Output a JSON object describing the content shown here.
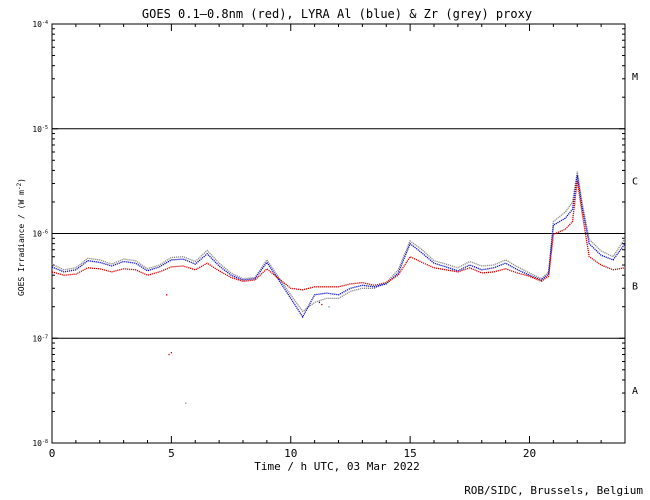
{
  "chart_data": {
    "type": "scatter",
    "title": "GOES 0.1—0.8nm (red), LYRA Al (blue) & Zr (grey) proxy",
    "xlabel": "Time / h UTC, 03 Mar 2022",
    "ylabel_prefix": "GOES Irradiance / (W m",
    "ylabel_exp": "-2",
    "ylabel_suffix": ")",
    "credit": "ROB/SIDC, Brussels, Belgium",
    "xlim": [
      0,
      24
    ],
    "ylim": [
      1e-08,
      0.0001
    ],
    "yscale": "log",
    "x_ticks": [
      0,
      5,
      10,
      15,
      20
    ],
    "y_ticks": [
      {
        "value": 1e-08,
        "base": "10",
        "exp": "-8"
      },
      {
        "value": 1e-07,
        "base": "10",
        "exp": "-7"
      },
      {
        "value": 1e-06,
        "base": "10",
        "exp": "-6"
      },
      {
        "value": 1e-05,
        "base": "10",
        "exp": "-5"
      },
      {
        "value": 0.0001,
        "base": "10",
        "exp": "-4"
      }
    ],
    "class_lines": [
      1e-07,
      1e-06,
      1e-05
    ],
    "class_labels": [
      {
        "label": "A",
        "value": 3.2e-08
      },
      {
        "label": "B",
        "value": 3.2e-07
      },
      {
        "label": "C",
        "value": 3.2e-06
      },
      {
        "label": "M",
        "value": 3.2e-05
      }
    ],
    "series": [
      {
        "color": "#d40000",
        "x": [
          0,
          0.5,
          1.0,
          1.5,
          2.0,
          2.5,
          3.0,
          3.5,
          4.0,
          4.5,
          5.0,
          5.5,
          6.0,
          6.5,
          7.0,
          7.5,
          8.0,
          8.5,
          9.0,
          9.5,
          10.0,
          10.5,
          11.0,
          11.5,
          12.0,
          12.5,
          13.0,
          13.5,
          14.0,
          14.5,
          15.0,
          15.5,
          16.0,
          16.5,
          17.0,
          17.5,
          18.0,
          18.5,
          19.0,
          19.5,
          20.0,
          20.5,
          20.8,
          21.0,
          21.5,
          21.8,
          22.0,
          22.2,
          22.5,
          23.0,
          23.5,
          24.0
        ],
        "y": [
          4.3e-07,
          4e-07,
          4.1e-07,
          4.7e-07,
          4.6e-07,
          4.3e-07,
          4.6e-07,
          4.5e-07,
          4e-07,
          4.3e-07,
          4.8e-07,
          4.9e-07,
          4.5e-07,
          5.2e-07,
          4.4e-07,
          3.8e-07,
          3.5e-07,
          3.6e-07,
          4.6e-07,
          3.7e-07,
          3e-07,
          2.9e-07,
          3.1e-07,
          3.1e-07,
          3.1e-07,
          3.3e-07,
          3.4e-07,
          3.2e-07,
          3.4e-07,
          4e-07,
          6e-07,
          5.3e-07,
          4.7e-07,
          4.5e-07,
          4.3e-07,
          4.7e-07,
          4.2e-07,
          4.3e-07,
          4.6e-07,
          4.2e-07,
          3.9e-07,
          3.5e-07,
          3.9e-07,
          9.8e-07,
          1.1e-06,
          1.3e-06,
          3.2e-06,
          1.6e-06,
          6e-07,
          5e-07,
          4.5e-07,
          4.7e-07
        ]
      },
      {
        "color": "#1010c8",
        "x": [
          0,
          0.5,
          1.0,
          1.5,
          2.0,
          2.5,
          3.0,
          3.5,
          4.0,
          4.5,
          5.0,
          5.5,
          6.0,
          6.5,
          7.0,
          7.5,
          8.0,
          8.5,
          9.0,
          9.5,
          10.0,
          10.5,
          11.0,
          11.5,
          12.0,
          12.5,
          13.0,
          13.5,
          14.0,
          14.5,
          15.0,
          15.5,
          16.0,
          16.5,
          17.0,
          17.5,
          18.0,
          18.5,
          19.0,
          19.5,
          20.0,
          20.5,
          20.8,
          21.0,
          21.5,
          21.8,
          22.0,
          22.2,
          22.5,
          23.0,
          23.5,
          24.0
        ],
        "y": [
          4.8e-07,
          4.3e-07,
          4.5e-07,
          5.5e-07,
          5.3e-07,
          4.9e-07,
          5.4e-07,
          5.2e-07,
          4.4e-07,
          4.8e-07,
          5.6e-07,
          5.7e-07,
          5.1e-07,
          6.4e-07,
          4.9e-07,
          4e-07,
          3.6e-07,
          3.7e-07,
          5.3e-07,
          3.6e-07,
          2.4e-07,
          1.6e-07,
          2.6e-07,
          2.7e-07,
          2.6e-07,
          3e-07,
          3.2e-07,
          3.1e-07,
          3.3e-07,
          4.2e-07,
          8e-07,
          6.5e-07,
          5.2e-07,
          4.8e-07,
          4.4e-07,
          5e-07,
          4.5e-07,
          4.7e-07,
          5.2e-07,
          4.5e-07,
          4e-07,
          3.6e-07,
          4.1e-07,
          1.2e-06,
          1.4e-06,
          1.7e-06,
          3.6e-06,
          1.8e-06,
          8e-07,
          6.2e-07,
          5.6e-07,
          8e-07
        ]
      },
      {
        "color": "#8a8a8a",
        "x": [
          0,
          0.5,
          1.0,
          1.5,
          2.0,
          2.5,
          3.0,
          3.5,
          4.0,
          4.5,
          5.0,
          5.5,
          6.0,
          6.5,
          7.0,
          7.5,
          8.0,
          8.5,
          9.0,
          9.5,
          10.0,
          10.5,
          11.0,
          11.5,
          12.0,
          12.5,
          13.0,
          13.5,
          14.0,
          14.5,
          15.0,
          15.5,
          16.0,
          16.5,
          17.0,
          17.5,
          18.0,
          18.5,
          19.0,
          19.5,
          20.0,
          20.5,
          20.8,
          21.0,
          21.5,
          21.8,
          22.0,
          22.2,
          22.5,
          23.0,
          23.5,
          24.0
        ],
        "y": [
          5.1e-07,
          4.5e-07,
          4.7e-07,
          5.8e-07,
          5.6e-07,
          5.1e-07,
          5.7e-07,
          5.5e-07,
          4.6e-07,
          5e-07,
          5.9e-07,
          6e-07,
          5.4e-07,
          6.9e-07,
          5.2e-07,
          4.2e-07,
          3.7e-07,
          3.8e-07,
          5.6e-07,
          3.8e-07,
          2.6e-07,
          1.8e-07,
          2.2e-07,
          2.4e-07,
          2.4e-07,
          2.8e-07,
          3e-07,
          3e-07,
          3.4e-07,
          4.5e-07,
          8.5e-07,
          7e-07,
          5.5e-07,
          5.1e-07,
          4.7e-07,
          5.4e-07,
          4.9e-07,
          5e-07,
          5.6e-07,
          4.8e-07,
          4.2e-07,
          3.7e-07,
          4.3e-07,
          1.3e-06,
          1.6e-06,
          2e-06,
          3.9e-06,
          2e-06,
          8.8e-07,
          6.8e-07,
          6e-07,
          9e-07
        ]
      }
    ],
    "outliers": [
      {
        "color": "#d40000",
        "x": 4.9,
        "y": 7e-08
      },
      {
        "color": "#d40000",
        "x": 4.8,
        "y": 2.6e-07
      },
      {
        "color": "#1010c8",
        "x": 11.2,
        "y": 2.2e-07
      },
      {
        "color": "#8a8a8a",
        "x": 11.6,
        "y": 2e-07
      },
      {
        "color": "#d40000",
        "x": 11.3,
        "y": 2.1e-07
      },
      {
        "color": "#d40000",
        "x": 5.0,
        "y": 7.3e-08
      },
      {
        "color": "#8a8a8a",
        "x": 5.6,
        "y": 2.4e-08
      }
    ]
  }
}
